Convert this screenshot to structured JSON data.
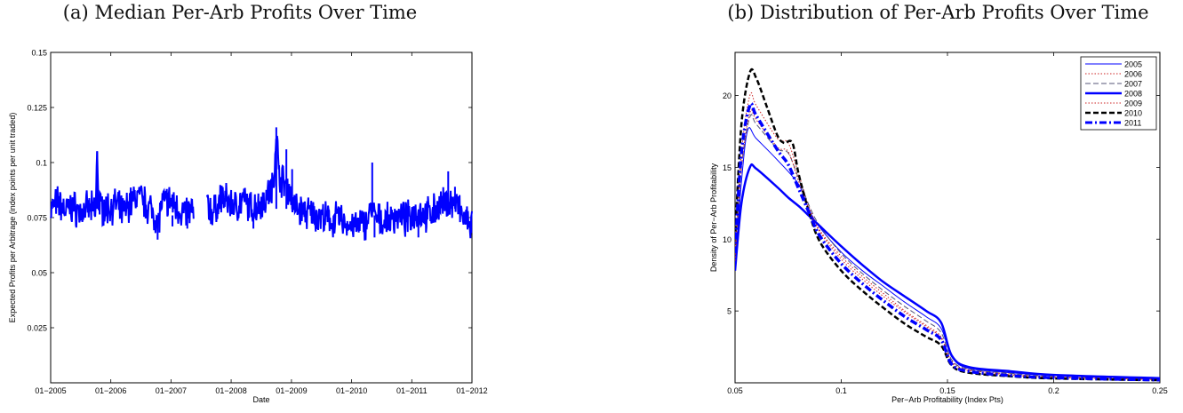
{
  "chart_data": [
    {
      "type": "line",
      "panel_title": "(a) Median Per-Arb Profits Over Time",
      "xlabel": "Date",
      "ylabel": "Expected Profits per Arbitrage (index points per unit traded)",
      "xlim": [
        "2005-01-01",
        "2012-01-01"
      ],
      "ylim": [
        0,
        0.15
      ],
      "x_ticks": [
        "01−2005",
        "01−2006",
        "01−2007",
        "01−2008",
        "01−2009",
        "01−2010",
        "01−2011",
        "01−2012"
      ],
      "y_ticks": [
        "0.025",
        "0.05",
        "0.075",
        "0.1",
        "0.125",
        "0.15"
      ],
      "y_tick_values": [
        0.025,
        0.05,
        0.075,
        0.1,
        0.125,
        0.15
      ],
      "grid": false,
      "color": "#0000ff",
      "gap": [
        "2007-05-20",
        "2007-08-05"
      ],
      "series": [
        {
          "values_desc": "daily median",
          "points": [
            [
              "2005-01-01",
              0.079
            ],
            [
              "2005-02-15",
              0.082
            ],
            [
              "2005-04-01",
              0.078
            ],
            [
              "2005-05-15",
              0.08
            ],
            [
              "2005-07-01",
              0.077
            ],
            [
              "2005-08-15",
              0.079
            ],
            [
              "2005-10-01",
              0.078
            ],
            [
              "2005-10-10",
              0.105
            ],
            [
              "2005-10-20",
              0.08
            ],
            [
              "2005-12-01",
              0.079
            ],
            [
              "2006-02-01",
              0.081
            ],
            [
              "2006-03-15",
              0.077
            ],
            [
              "2006-05-01",
              0.082
            ],
            [
              "2006-06-15",
              0.085
            ],
            [
              "2006-08-01",
              0.081
            ],
            [
              "2006-09-15",
              0.078
            ],
            [
              "2006-10-15",
              0.072
            ],
            [
              "2006-11-01",
              0.08
            ],
            [
              "2006-12-15",
              0.083
            ],
            [
              "2007-02-01",
              0.08
            ],
            [
              "2007-03-15",
              0.077
            ],
            [
              "2007-05-15",
              0.078
            ],
            [
              "2007-08-10",
              0.08
            ],
            [
              "2007-09-15",
              0.077
            ],
            [
              "2007-11-01",
              0.084
            ],
            [
              "2007-12-15",
              0.082
            ],
            [
              "2008-02-01",
              0.08
            ],
            [
              "2008-03-15",
              0.083
            ],
            [
              "2008-05-01",
              0.079
            ],
            [
              "2008-06-15",
              0.081
            ],
            [
              "2008-08-01",
              0.084
            ],
            [
              "2008-09-15",
              0.09
            ],
            [
              "2008-10-01",
              0.116
            ],
            [
              "2008-10-15",
              0.095
            ],
            [
              "2008-11-15",
              0.091
            ],
            [
              "2008-12-15",
              0.088
            ],
            [
              "2009-01-15",
              0.08
            ],
            [
              "2009-03-01",
              0.078
            ],
            [
              "2009-04-15",
              0.077
            ],
            [
              "2009-06-01",
              0.076
            ],
            [
              "2009-07-15",
              0.075
            ],
            [
              "2009-09-01",
              0.073
            ],
            [
              "2009-10-15",
              0.075
            ],
            [
              "2009-12-01",
              0.072
            ],
            [
              "2010-02-01",
              0.071
            ],
            [
              "2010-04-01",
              0.073
            ],
            [
              "2010-05-01",
              0.079
            ],
            [
              "2010-06-01",
              0.074
            ],
            [
              "2010-08-01",
              0.073
            ],
            [
              "2010-10-01",
              0.076
            ],
            [
              "2010-12-01",
              0.074
            ],
            [
              "2011-02-01",
              0.078
            ],
            [
              "2011-04-01",
              0.076
            ],
            [
              "2011-06-01",
              0.079
            ],
            [
              "2011-08-01",
              0.082
            ],
            [
              "2011-10-01",
              0.081
            ],
            [
              "2011-11-15",
              0.074
            ],
            [
              "2012-01-01",
              0.072
            ]
          ],
          "spikes": [
            [
              "2005-10-10",
              0.105
            ],
            [
              "2006-10-12",
              0.065
            ],
            [
              "2007-01-10",
              0.071
            ],
            [
              "2007-04-10",
              0.07
            ],
            [
              "2008-05-15",
              0.07
            ],
            [
              "2008-10-01",
              0.116
            ],
            [
              "2008-12-01",
              0.106
            ],
            [
              "2009-01-05",
              0.097
            ],
            [
              "2010-05-06",
              0.1
            ],
            [
              "2010-05-20",
              0.066
            ],
            [
              "2011-02-10",
              0.066
            ],
            [
              "2011-08-10",
              0.096
            ],
            [
              "2011-09-20",
              0.089
            ],
            [
              "2011-12-28",
              0.068
            ]
          ]
        }
      ]
    },
    {
      "type": "line",
      "panel_title": "(b) Distribution of Per-Arb Profits Over Time",
      "xlabel": "Per−Arb Profitability (Index Pts)",
      "ylabel": "Density of Per−Arb Profitability",
      "xlim": [
        0.05,
        0.25
      ],
      "ylim": [
        0,
        23
      ],
      "x_ticks": [
        "0.05",
        "0.1",
        "0.15",
        "0.2",
        "0.25"
      ],
      "x_tick_values": [
        0.05,
        0.1,
        0.15,
        0.2,
        0.25
      ],
      "y_ticks": [
        "5",
        "10",
        "15",
        "20"
      ],
      "y_tick_values": [
        5,
        10,
        15,
        20
      ],
      "grid": false,
      "legend_position": "top-right",
      "series": [
        {
          "name": "2005",
          "color": "#0000ff",
          "style": "solid-thin",
          "points": [
            [
              0.05,
              8
            ],
            [
              0.053,
              14
            ],
            [
              0.056,
              17.6
            ],
            [
              0.06,
              17.0
            ],
            [
              0.07,
              15.5
            ],
            [
              0.08,
              13.8
            ],
            [
              0.085,
              12.0
            ],
            [
              0.09,
              10.8
            ],
            [
              0.1,
              9.1
            ],
            [
              0.11,
              7.8
            ],
            [
              0.12,
              6.7
            ],
            [
              0.13,
              5.6
            ],
            [
              0.14,
              4.6
            ],
            [
              0.147,
              3.8
            ],
            [
              0.152,
              1.8
            ],
            [
              0.16,
              1.0
            ],
            [
              0.18,
              0.7
            ],
            [
              0.2,
              0.5
            ],
            [
              0.25,
              0.3
            ]
          ]
        },
        {
          "name": "2006",
          "color": "#cc2222",
          "style": "dotted",
          "points": [
            [
              0.05,
              9
            ],
            [
              0.053,
              16
            ],
            [
              0.057,
              20.0
            ],
            [
              0.06,
              19.3
            ],
            [
              0.07,
              17.0
            ],
            [
              0.075,
              16.7
            ],
            [
              0.08,
              14.5
            ],
            [
              0.085,
              12.2
            ],
            [
              0.09,
              10.6
            ],
            [
              0.1,
              8.8
            ],
            [
              0.11,
              7.4
            ],
            [
              0.12,
              6.2
            ],
            [
              0.13,
              5.0
            ],
            [
              0.14,
              4.0
            ],
            [
              0.147,
              3.2
            ],
            [
              0.152,
              1.5
            ],
            [
              0.16,
              0.9
            ],
            [
              0.18,
              0.6
            ],
            [
              0.2,
              0.4
            ],
            [
              0.25,
              0.25
            ]
          ]
        },
        {
          "name": "2007",
          "color": "#555577",
          "style": "dashed-thin",
          "points": [
            [
              0.05,
              8.5
            ],
            [
              0.053,
              15
            ],
            [
              0.057,
              18.5
            ],
            [
              0.06,
              18.0
            ],
            [
              0.07,
              16.3
            ],
            [
              0.075,
              16.0
            ],
            [
              0.08,
              14.2
            ],
            [
              0.085,
              12.3
            ],
            [
              0.09,
              10.9
            ],
            [
              0.1,
              9.0
            ],
            [
              0.11,
              7.6
            ],
            [
              0.12,
              6.4
            ],
            [
              0.13,
              5.3
            ],
            [
              0.14,
              4.3
            ],
            [
              0.147,
              3.5
            ],
            [
              0.152,
              1.6
            ],
            [
              0.16,
              0.95
            ],
            [
              0.18,
              0.65
            ],
            [
              0.2,
              0.45
            ],
            [
              0.25,
              0.28
            ]
          ]
        },
        {
          "name": "2008",
          "color": "#0000ff",
          "style": "solid-thick",
          "points": [
            [
              0.05,
              7.8
            ],
            [
              0.053,
              12.5
            ],
            [
              0.057,
              15.0
            ],
            [
              0.06,
              14.9
            ],
            [
              0.07,
              13.6
            ],
            [
              0.075,
              12.9
            ],
            [
              0.08,
              12.3
            ],
            [
              0.085,
              11.6
            ],
            [
              0.09,
              10.9
            ],
            [
              0.1,
              9.5
            ],
            [
              0.11,
              8.2
            ],
            [
              0.12,
              7.0
            ],
            [
              0.13,
              6.0
            ],
            [
              0.14,
              5.0
            ],
            [
              0.147,
              4.2
            ],
            [
              0.152,
              1.9
            ],
            [
              0.16,
              1.1
            ],
            [
              0.18,
              0.8
            ],
            [
              0.2,
              0.55
            ],
            [
              0.25,
              0.32
            ]
          ]
        },
        {
          "name": "2009",
          "color": "#cc2222",
          "style": "dotted",
          "points": [
            [
              0.05,
              8.5
            ],
            [
              0.053,
              15
            ],
            [
              0.057,
              18.8
            ],
            [
              0.06,
              18.3
            ],
            [
              0.07,
              16.4
            ],
            [
              0.075,
              16.1
            ],
            [
              0.08,
              14.0
            ],
            [
              0.085,
              12.0
            ],
            [
              0.09,
              10.5
            ],
            [
              0.1,
              8.6
            ],
            [
              0.11,
              7.2
            ],
            [
              0.12,
              6.0
            ],
            [
              0.13,
              4.9
            ],
            [
              0.14,
              3.9
            ],
            [
              0.147,
              3.1
            ],
            [
              0.152,
              1.4
            ],
            [
              0.16,
              0.85
            ],
            [
              0.18,
              0.55
            ],
            [
              0.2,
              0.38
            ],
            [
              0.25,
              0.22
            ]
          ]
        },
        {
          "name": "2010",
          "color": "#000000",
          "style": "dashed-thick",
          "points": [
            [
              0.05,
              10
            ],
            [
              0.053,
              18
            ],
            [
              0.057,
              21.6
            ],
            [
              0.06,
              21.2
            ],
            [
              0.065,
              19.2
            ],
            [
              0.07,
              17.2
            ],
            [
              0.073,
              16.7
            ],
            [
              0.077,
              16.7
            ],
            [
              0.08,
              14.5
            ],
            [
              0.085,
              11.8
            ],
            [
              0.09,
              9.8
            ],
            [
              0.1,
              7.8
            ],
            [
              0.11,
              6.4
            ],
            [
              0.12,
              5.2
            ],
            [
              0.13,
              4.1
            ],
            [
              0.14,
              3.2
            ],
            [
              0.147,
              2.6
            ],
            [
              0.152,
              1.2
            ],
            [
              0.16,
              0.7
            ],
            [
              0.18,
              0.45
            ],
            [
              0.2,
              0.3
            ],
            [
              0.25,
              0.18
            ]
          ]
        },
        {
          "name": "2011",
          "color": "#0000ff",
          "style": "dashdot-thick",
          "points": [
            [
              0.05,
              9
            ],
            [
              0.053,
              16
            ],
            [
              0.057,
              19.3
            ],
            [
              0.06,
              18.6
            ],
            [
              0.07,
              16.2
            ],
            [
              0.075,
              15.2
            ],
            [
              0.08,
              13.5
            ],
            [
              0.085,
              11.8
            ],
            [
              0.09,
              10.2
            ],
            [
              0.1,
              8.3
            ],
            [
              0.11,
              6.9
            ],
            [
              0.12,
              5.7
            ],
            [
              0.13,
              4.6
            ],
            [
              0.14,
              3.7
            ],
            [
              0.147,
              3.0
            ],
            [
              0.152,
              1.3
            ],
            [
              0.16,
              0.8
            ],
            [
              0.18,
              0.5
            ],
            [
              0.2,
              0.35
            ],
            [
              0.25,
              0.2
            ]
          ]
        }
      ]
    }
  ]
}
